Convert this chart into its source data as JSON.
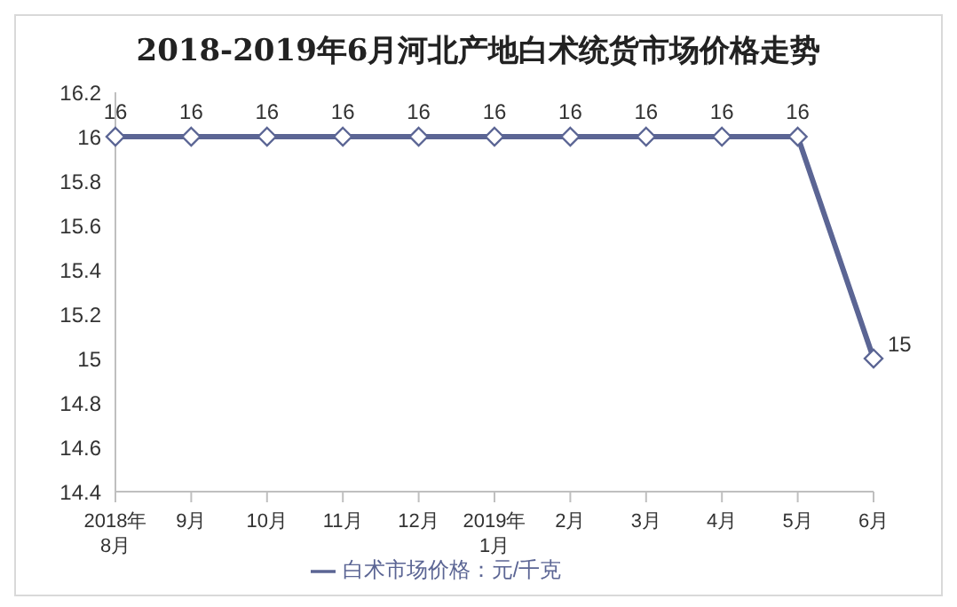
{
  "chart_data": {
    "type": "line",
    "title": "2018-2019年6月河北产地白术统货市场价格走势",
    "categories": [
      "2018年\n8月",
      "9月",
      "10月",
      "11月",
      "12月",
      "2019年\n1月",
      "2月",
      "3月",
      "4月",
      "5月",
      "6月"
    ],
    "series": [
      {
        "name": "白术市场价格：元/千克",
        "color": "#5b6594",
        "values": [
          16,
          16,
          16,
          16,
          16,
          16,
          16,
          16,
          16,
          16,
          15
        ]
      }
    ],
    "ylim": [
      14.4,
      16.2
    ],
    "yticks": [
      14.4,
      14.6,
      14.8,
      15,
      15.2,
      15.4,
      15.6,
      15.8,
      16,
      16.2
    ],
    "grid": false,
    "legend": "bottom",
    "marker": "diamond",
    "line_style": "solid",
    "data_labels": true
  }
}
